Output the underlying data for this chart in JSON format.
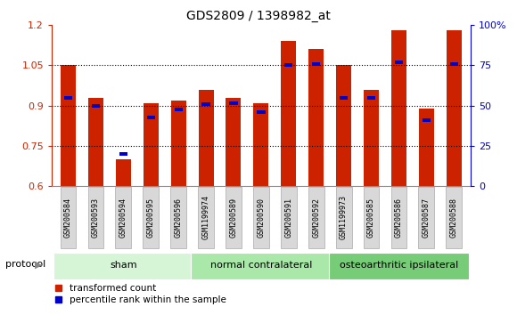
{
  "title": "GDS2809 / 1398982_at",
  "samples": [
    "GSM200584",
    "GSM200593",
    "GSM200594",
    "GSM200595",
    "GSM200596",
    "GSM1199974",
    "GSM200589",
    "GSM200590",
    "GSM200591",
    "GSM200592",
    "GSM1199973",
    "GSM200585",
    "GSM200586",
    "GSM200587",
    "GSM200588"
  ],
  "red_values": [
    1.05,
    0.93,
    0.7,
    0.91,
    0.92,
    0.96,
    0.93,
    0.91,
    1.14,
    1.11,
    1.05,
    0.96,
    1.18,
    0.89,
    1.18
  ],
  "blue_values": [
    0.93,
    0.9,
    0.72,
    0.855,
    0.885,
    0.905,
    0.91,
    0.875,
    1.05,
    1.055,
    0.93,
    0.93,
    1.06,
    0.845,
    1.055
  ],
  "groups": [
    {
      "label": "sham",
      "start": 0,
      "end": 5
    },
    {
      "label": "normal contralateral",
      "start": 5,
      "end": 10
    },
    {
      "label": "osteoarthritic ipsilateral",
      "start": 10,
      "end": 15
    }
  ],
  "group_colors": [
    "#d6f5d6",
    "#aae8aa",
    "#77cc77"
  ],
  "ylim_left": [
    0.6,
    1.2
  ],
  "ylim_right": [
    0,
    100
  ],
  "yticks_left": [
    0.6,
    0.75,
    0.9,
    1.05,
    1.2
  ],
  "yticks_right": [
    0,
    25,
    50,
    75,
    100
  ],
  "ytick_labels_right": [
    "0",
    "25",
    "50",
    "75",
    "100%"
  ],
  "bar_color": "#cc2200",
  "blue_color": "#0000cc",
  "bar_width": 0.55,
  "baseline": 0.6,
  "protocol_label": "protocol"
}
